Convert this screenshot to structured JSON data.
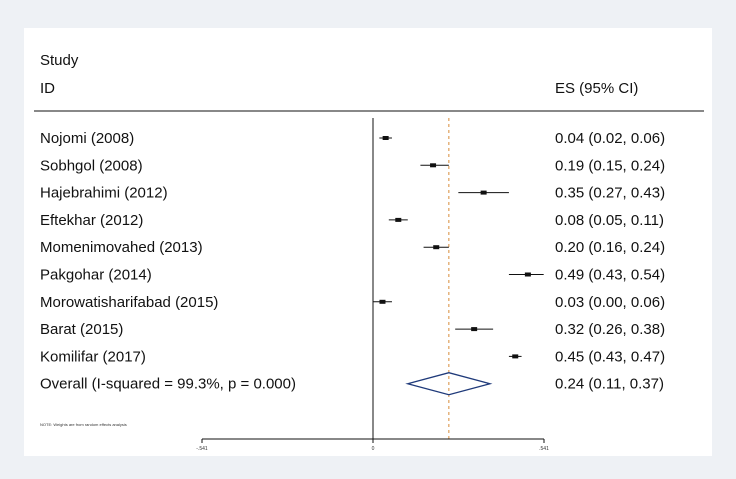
{
  "chart_data": {
    "type": "forest",
    "header": {
      "col1_line1": "Study",
      "col1_line2": "ID",
      "col2": "ES (95% CI)"
    },
    "studies": [
      {
        "label": "Nojomi (2008)",
        "es": 0.04,
        "lo": 0.02,
        "hi": 0.06,
        "es_text": "0.04 (0.02, 0.06)"
      },
      {
        "label": "Sobhgol (2008)",
        "es": 0.19,
        "lo": 0.15,
        "hi": 0.24,
        "es_text": "0.19 (0.15, 0.24)"
      },
      {
        "label": "Hajebrahimi (2012)",
        "es": 0.35,
        "lo": 0.27,
        "hi": 0.43,
        "es_text": "0.35 (0.27, 0.43)"
      },
      {
        "label": "Eftekhar (2012)",
        "es": 0.08,
        "lo": 0.05,
        "hi": 0.11,
        "es_text": "0.08 (0.05, 0.11)"
      },
      {
        "label": "Momenimovahed (2013)",
        "es": 0.2,
        "lo": 0.16,
        "hi": 0.24,
        "es_text": "0.20 (0.16, 0.24)"
      },
      {
        "label": "Pakgohar (2014)",
        "es": 0.49,
        "lo": 0.43,
        "hi": 0.54,
        "es_text": "0.49 (0.43, 0.54)"
      },
      {
        "label": "Morowatisharifabad (2015)",
        "es": 0.03,
        "lo": 0.0,
        "hi": 0.06,
        "es_text": "0.03 (0.00, 0.06)"
      },
      {
        "label": "Barat (2015)",
        "es": 0.32,
        "lo": 0.26,
        "hi": 0.38,
        "es_text": "0.32 (0.26, 0.38)"
      },
      {
        "label": "Komilifar (2017)",
        "es": 0.45,
        "lo": 0.43,
        "hi": 0.47,
        "es_text": "0.45 (0.43, 0.47)"
      }
    ],
    "overall": {
      "label": "Overall  (I-squared = 99.3%, p = 0.000)",
      "es": 0.24,
      "lo": 0.11,
      "hi": 0.37,
      "es_text": "0.24 (0.11, 0.37)"
    },
    "note": "NOTE: Weights are from random effects analysis",
    "xlim": [
      -0.541,
      0.541
    ],
    "null_line": 0,
    "ticks": [
      {
        "value": -0.541,
        "label": "-.541"
      },
      {
        "value": 0,
        "label": "0"
      },
      {
        "value": 0.541,
        "label": ".541"
      }
    ],
    "colors": {
      "diamond": "#1f3a7a",
      "ref_line": "#d98c3a",
      "marker": "#111111"
    }
  }
}
